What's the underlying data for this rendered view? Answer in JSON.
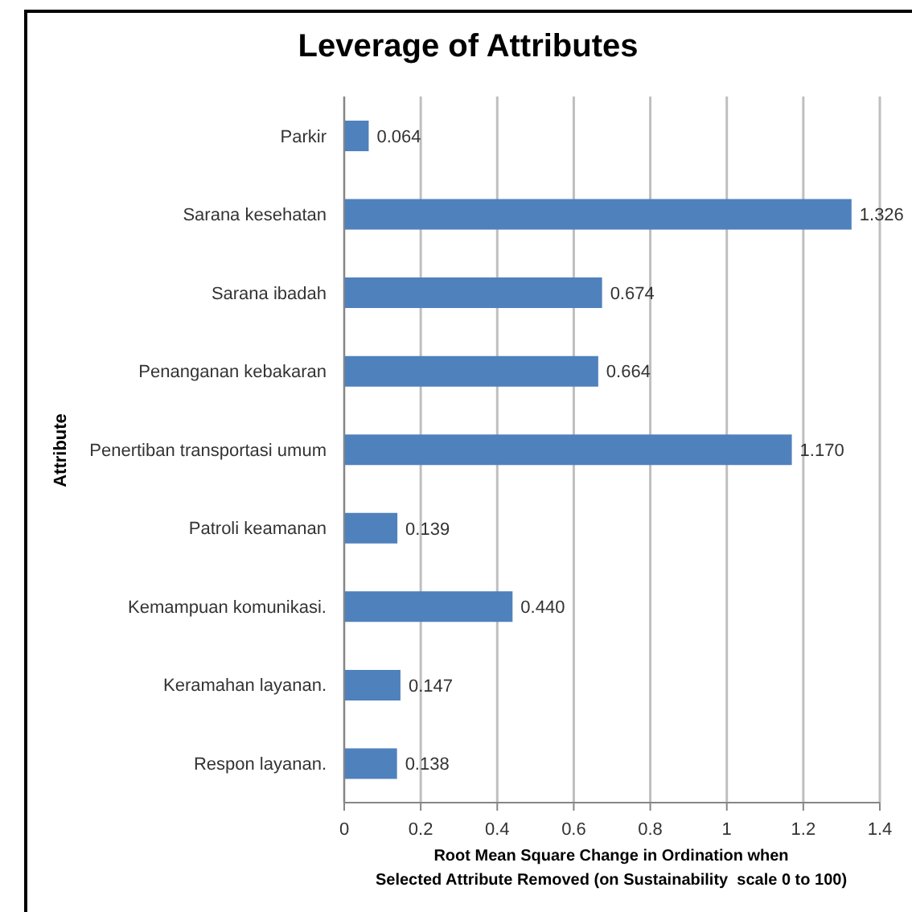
{
  "chart_data": {
    "type": "bar",
    "orientation": "horizontal",
    "title": "Leverage of Attributes",
    "xlabel": "Root Mean Square Change in Ordination when\nSelected Attribute Removed (on Sustainability  scale 0 to 100)",
    "ylabel": "Attribute",
    "categories": [
      "Parkir",
      "Sarana kesehatan",
      "Sarana ibadah",
      "Penanganan kebakaran",
      "Penertiban transportasi umum",
      "Patroli keamanan",
      "Kemampuan komunikasi.",
      "Keramahan layanan.",
      "Respon layanan."
    ],
    "values": [
      0.064,
      1.326,
      0.674,
      0.664,
      1.17,
      0.139,
      0.44,
      0.147,
      0.138
    ],
    "value_labels": [
      "0.064",
      "1.326",
      "0.674",
      "0.664",
      "1.170",
      "0.139",
      "0.440",
      "0.147",
      "0.138"
    ],
    "color": "#4f81bd",
    "xlim": [
      0,
      1.4
    ],
    "xticks": [
      0,
      0.2,
      0.4,
      0.6,
      0.8,
      1,
      1.2,
      1.4
    ],
    "grid": "x"
  }
}
